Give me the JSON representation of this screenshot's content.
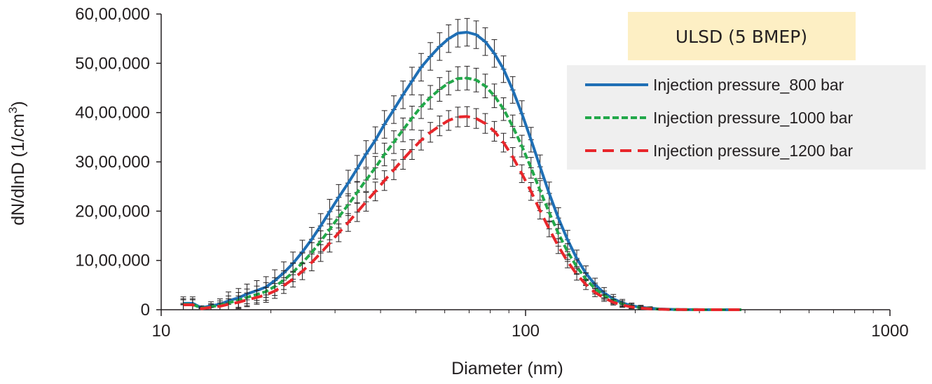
{
  "chart_data": {
    "type": "line",
    "title": "",
    "annotation": "ULSD (5 BMEP)",
    "xlabel": "Diameter (nm)",
    "ylabel_main": "dN/dlnD (1/cm",
    "ylabel_sup": "3",
    "ylabel_end": ")",
    "x_scale": "log",
    "xlim": [
      10,
      1000
    ],
    "ylim": [
      0,
      6000000
    ],
    "x_ticks": [
      10,
      100,
      1000
    ],
    "x_tick_labels": [
      "10",
      "100",
      "1000"
    ],
    "y_ticks": [
      0,
      1000000,
      2000000,
      3000000,
      4000000,
      5000000,
      6000000
    ],
    "y_tick_labels": [
      "0",
      "10,00,000",
      "20,00,000",
      "30,00,000",
      "40,00,000",
      "50,00,000",
      "60,00,000"
    ],
    "legend_position": "top-right",
    "error_bars": true,
    "series": [
      {
        "name": "Injection pressure_800 bar",
        "color": "#1f6fb5",
        "style": "solid",
        "peak_x": 68,
        "peak_y": 5640000,
        "x": [
          11.5,
          12.2,
          12.9,
          13.7,
          14.5,
          15.3,
          16.3,
          17.2,
          18.3,
          19.4,
          20.5,
          21.7,
          23.0,
          24.4,
          25.9,
          27.4,
          29.0,
          30.7,
          32.6,
          34.5,
          36.5,
          38.7,
          41.0,
          43.5,
          46.1,
          48.8,
          51.7,
          54.8,
          58.1,
          61.5,
          65.2,
          69.1,
          73.2,
          77.5,
          82.1,
          87.0,
          92.2,
          97.7,
          103.5,
          109.6,
          116.1,
          123.0,
          130.4,
          138.2,
          146.4,
          155.1,
          164.3,
          174.1,
          184.4,
          195.4,
          207.1,
          219.4,
          232.5,
          246.3,
          260.9,
          276.4,
          292.9,
          310.3,
          328.7,
          348.3,
          369.0,
          390.9
        ],
        "y": [
          130000,
          130000,
          40000,
          80000,
          110000,
          180000,
          240000,
          320000,
          390000,
          460000,
          590000,
          750000,
          940000,
          1170000,
          1430000,
          1700000,
          1990000,
          2280000,
          2570000,
          2860000,
          3160000,
          3440000,
          3760000,
          4060000,
          4360000,
          4640000,
          4920000,
          5140000,
          5340000,
          5500000,
          5610000,
          5630000,
          5580000,
          5440000,
          5200000,
          4880000,
          4460000,
          3980000,
          3450000,
          2900000,
          2360000,
          1860000,
          1420000,
          1040000,
          740000,
          510000,
          340000,
          220000,
          140000,
          80000,
          50000,
          30000,
          15000,
          8000,
          4000,
          2000,
          1000,
          500,
          200,
          100,
          50,
          20
        ],
        "error": [
          130000,
          130000,
          40000,
          80000,
          110000,
          180000,
          190000,
          200000,
          200000,
          210000,
          220000,
          220000,
          230000,
          240000,
          240000,
          250000,
          250000,
          260000,
          260000,
          270000,
          270000,
          270000,
          280000,
          280000,
          280000,
          280000,
          280000,
          280000,
          280000,
          280000,
          280000,
          280000,
          280000,
          280000,
          280000,
          270000,
          270000,
          260000,
          250000,
          240000,
          230000,
          210000,
          190000,
          170000,
          150000,
          130000,
          110000,
          90000,
          70000,
          55000,
          40000,
          30000,
          15000,
          8000,
          4000,
          2000,
          1000,
          500,
          200,
          100,
          50,
          20
        ]
      },
      {
        "name": "Injection pressure_1000 bar",
        "color": "#22a84a",
        "style": "dotted",
        "peak_x": 69,
        "peak_y": 4700000,
        "x": [
          11.5,
          12.2,
          12.9,
          13.7,
          14.5,
          15.3,
          16.3,
          17.2,
          18.3,
          19.4,
          20.5,
          21.7,
          23.0,
          24.4,
          25.9,
          27.4,
          29.0,
          30.7,
          32.6,
          34.5,
          36.5,
          38.7,
          41.0,
          43.5,
          46.1,
          48.8,
          51.7,
          54.8,
          58.1,
          61.5,
          65.2,
          69.1,
          73.2,
          77.5,
          82.1,
          87.0,
          92.2,
          97.7,
          103.5,
          109.6,
          116.1,
          123.0,
          130.4,
          138.2,
          146.4,
          155.1,
          164.3,
          174.1,
          184.4,
          195.4,
          207.1,
          219.4,
          232.5,
          246.3,
          260.9,
          276.4,
          292.9,
          310.3,
          328.7,
          348.3,
          369.0,
          390.9
        ],
        "y": [
          110000,
          110000,
          30000,
          60000,
          90000,
          140000,
          190000,
          250000,
          310000,
          370000,
          470000,
          600000,
          760000,
          950000,
          1160000,
          1390000,
          1630000,
          1880000,
          2130000,
          2380000,
          2630000,
          2880000,
          3150000,
          3400000,
          3650000,
          3890000,
          4120000,
          4310000,
          4470000,
          4600000,
          4690000,
          4700000,
          4660000,
          4540000,
          4340000,
          4070000,
          3720000,
          3320000,
          2880000,
          2420000,
          1970000,
          1550000,
          1180000,
          870000,
          620000,
          430000,
          290000,
          190000,
          120000,
          70000,
          40000,
          25000,
          12000,
          6000,
          3000,
          1500,
          800,
          400,
          200,
          100,
          50,
          20
        ],
        "error": [
          110000,
          110000,
          30000,
          60000,
          90000,
          140000,
          160000,
          170000,
          170000,
          180000,
          180000,
          190000,
          190000,
          200000,
          200000,
          210000,
          210000,
          220000,
          220000,
          220000,
          230000,
          230000,
          230000,
          230000,
          240000,
          240000,
          240000,
          240000,
          240000,
          240000,
          240000,
          240000,
          240000,
          240000,
          240000,
          230000,
          230000,
          220000,
          210000,
          200000,
          190000,
          180000,
          160000,
          140000,
          130000,
          110000,
          90000,
          75000,
          60000,
          45000,
          35000,
          25000,
          12000,
          6000,
          3000,
          1500,
          800,
          400,
          200,
          100,
          50,
          20
        ]
      },
      {
        "name": "Injection pressure_1200 bar",
        "color": "#e8262b",
        "style": "dashed",
        "peak_x": 69,
        "peak_y": 3920000,
        "x": [
          11.5,
          12.2,
          12.9,
          13.7,
          14.5,
          15.3,
          16.3,
          17.2,
          18.3,
          19.4,
          20.5,
          21.7,
          23.0,
          24.4,
          25.9,
          27.4,
          29.0,
          30.7,
          32.6,
          34.5,
          36.5,
          38.7,
          41.0,
          43.5,
          46.1,
          48.8,
          51.7,
          54.8,
          58.1,
          61.5,
          65.2,
          69.1,
          73.2,
          77.5,
          82.1,
          87.0,
          92.2,
          97.7,
          103.5,
          109.6,
          116.1,
          123.0,
          130.4,
          138.2,
          146.4,
          155.1,
          164.3,
          174.1,
          184.4,
          195.4,
          207.1,
          219.4,
          232.5,
          246.3,
          260.9,
          276.4,
          292.9,
          310.3,
          328.7,
          348.3,
          369.0,
          390.9
        ],
        "y": [
          100000,
          100000,
          20000,
          50000,
          70000,
          110000,
          150000,
          200000,
          250000,
          300000,
          380000,
          490000,
          620000,
          780000,
          960000,
          1150000,
          1350000,
          1560000,
          1770000,
          1980000,
          2190000,
          2400000,
          2620000,
          2840000,
          3050000,
          3250000,
          3440000,
          3600000,
          3730000,
          3840000,
          3910000,
          3920000,
          3880000,
          3780000,
          3620000,
          3390000,
          3100000,
          2760000,
          2400000,
          2010000,
          1640000,
          1290000,
          980000,
          720000,
          510000,
          350000,
          240000,
          150000,
          95000,
          55000,
          32000,
          18000,
          10000,
          5000,
          2500,
          1200,
          600,
          300,
          150,
          80,
          40,
          20
        ],
        "error": [
          100000,
          100000,
          20000,
          50000,
          70000,
          110000,
          130000,
          140000,
          140000,
          150000,
          150000,
          160000,
          160000,
          170000,
          170000,
          170000,
          180000,
          180000,
          180000,
          190000,
          190000,
          190000,
          200000,
          200000,
          200000,
          200000,
          200000,
          200000,
          200000,
          200000,
          200000,
          200000,
          200000,
          200000,
          200000,
          190000,
          190000,
          180000,
          180000,
          170000,
          160000,
          150000,
          130000,
          120000,
          100000,
          85000,
          70000,
          55000,
          45000,
          35000,
          25000,
          18000,
          10000,
          5000,
          2500,
          1200,
          600,
          300,
          150,
          80,
          40,
          20
        ]
      }
    ]
  }
}
